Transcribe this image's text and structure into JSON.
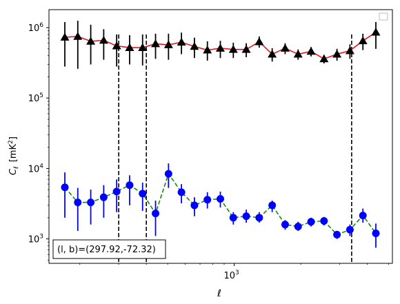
{
  "chart_data": {
    "type": "scatter",
    "xlabel": "ℓ",
    "ylabel": "C",
    "ylabel_sub": "ℓ",
    "ylabel_unit": "[mK",
    "ylabel_unit_sup": "2",
    "ylabel_unit_close": "]",
    "xscale": "log",
    "yscale": "log",
    "xlim": [
      145,
      5200
    ],
    "ylim": [
      450,
      1800000
    ],
    "x_major_ticks": [
      {
        "value": 1000,
        "base": "10",
        "exp": "3"
      }
    ],
    "y_major_ticks": [
      {
        "value": 1000,
        "base": "10",
        "exp": "3"
      },
      {
        "value": 10000,
        "base": "10",
        "exp": "4"
      },
      {
        "value": 100000,
        "base": "10",
        "exp": "5"
      },
      {
        "value": 1000000,
        "base": "10",
        "exp": "6"
      }
    ],
    "legend": "top-right, empty",
    "annotation": "(l, b)=(297.92,-72.32)",
    "vlines": [
      300,
      400,
      3400
    ],
    "vline_style": "dashed black",
    "series": [
      {
        "marker": "triangle",
        "marker_color": "#000000",
        "line_color": "#e8141b",
        "line_style": "solid",
        "error_color": "#000000",
        "points": [
          {
            "x": 160,
            "y": 730000,
            "lo": 280000,
            "hi": 1200000
          },
          {
            "x": 180,
            "y": 750000,
            "lo": 260000,
            "hi": 1250000
          },
          {
            "x": 200,
            "y": 640000,
            "lo": 300000,
            "hi": 1100000
          },
          {
            "x": 225,
            "y": 660000,
            "lo": 350000,
            "hi": 950000
          },
          {
            "x": 255,
            "y": 550000,
            "lo": 280000,
            "hi": 800000
          },
          {
            "x": 300,
            "y": 520000,
            "lo": 300000,
            "hi": 780000
          },
          {
            "x": 340,
            "y": 520000,
            "lo": 290000,
            "hi": 800000
          },
          {
            "x": 395,
            "y": 590000,
            "lo": 360000,
            "hi": 820000
          },
          {
            "x": 445,
            "y": 570000,
            "lo": 350000,
            "hi": 820000
          },
          {
            "x": 500,
            "y": 620000,
            "lo": 420000,
            "hi": 850000
          },
          {
            "x": 565,
            "y": 540000,
            "lo": 370000,
            "hi": 720000
          },
          {
            "x": 640,
            "y": 480000,
            "lo": 340000,
            "hi": 640000
          },
          {
            "x": 720,
            "y": 510000,
            "lo": 370000,
            "hi": 650000
          },
          {
            "x": 810,
            "y": 490000,
            "lo": 370000,
            "hi": 610000
          },
          {
            "x": 910,
            "y": 490000,
            "lo": 380000,
            "hi": 600000
          },
          {
            "x": 1030,
            "y": 630000,
            "lo": 520000,
            "hi": 750000
          },
          {
            "x": 1160,
            "y": 420000,
            "lo": 330000,
            "hi": 510000
          },
          {
            "x": 1300,
            "y": 510000,
            "lo": 420000,
            "hi": 600000
          },
          {
            "x": 1470,
            "y": 420000,
            "lo": 350000,
            "hi": 490000
          },
          {
            "x": 1650,
            "y": 460000,
            "lo": 390000,
            "hi": 530000
          },
          {
            "x": 1860,
            "y": 360000,
            "lo": 310000,
            "hi": 410000
          },
          {
            "x": 2100,
            "y": 420000,
            "lo": 340000,
            "hi": 500000
          },
          {
            "x": 2360,
            "y": 470000,
            "lo": 360000,
            "hi": 580000
          },
          {
            "x": 2660,
            "y": 650000,
            "lo": 480000,
            "hi": 820000
          },
          {
            "x": 3000,
            "y": 860000,
            "lo": 500000,
            "hi": 1200000
          }
        ]
      },
      {
        "marker": "circle",
        "marker_color": "#0000ff",
        "line_color": "#118811",
        "line_style": "dashed",
        "error_color": "#0000ff",
        "points": [
          {
            "x": 160,
            "y": 5400,
            "lo": 2000,
            "hi": 8800
          },
          {
            "x": 180,
            "y": 3300,
            "lo": 1300,
            "hi": 5300
          },
          {
            "x": 200,
            "y": 3300,
            "lo": 1600,
            "hi": 5000
          },
          {
            "x": 225,
            "y": 3900,
            "lo": 2000,
            "hi": 5800
          },
          {
            "x": 255,
            "y": 4700,
            "lo": 2400,
            "hi": 7000
          },
          {
            "x": 300,
            "y": 5800,
            "lo": 3000,
            "hi": 8000
          },
          {
            "x": 340,
            "y": 4400,
            "lo": 2500,
            "hi": 6300
          },
          {
            "x": 395,
            "y": 2300,
            "lo": 1100,
            "hi": 3500
          },
          {
            "x": 445,
            "y": 8400,
            "lo": 5300,
            "hi": 11800
          },
          {
            "x": 500,
            "y": 4600,
            "lo": 3200,
            "hi": 6000
          },
          {
            "x": 565,
            "y": 3000,
            "lo": 2100,
            "hi": 3900
          },
          {
            "x": 640,
            "y": 3600,
            "lo": 2700,
            "hi": 4600
          },
          {
            "x": 720,
            "y": 3700,
            "lo": 2800,
            "hi": 4700
          },
          {
            "x": 810,
            "y": 2000,
            "lo": 1600,
            "hi": 2400
          },
          {
            "x": 910,
            "y": 2100,
            "lo": 1700,
            "hi": 2600
          },
          {
            "x": 1030,
            "y": 2000,
            "lo": 1700,
            "hi": 2400
          },
          {
            "x": 1160,
            "y": 3000,
            "lo": 2400,
            "hi": 3500
          },
          {
            "x": 1300,
            "y": 1600,
            "lo": 1350,
            "hi": 1850
          },
          {
            "x": 1470,
            "y": 1500,
            "lo": 1300,
            "hi": 1750
          },
          {
            "x": 1650,
            "y": 1750,
            "lo": 1500,
            "hi": 2000
          },
          {
            "x": 1860,
            "y": 1800,
            "lo": 1550,
            "hi": 2050
          },
          {
            "x": 2100,
            "y": 1150,
            "lo": 1000,
            "hi": 1300
          },
          {
            "x": 2360,
            "y": 1350,
            "lo": 1100,
            "hi": 1600
          },
          {
            "x": 2660,
            "y": 2150,
            "lo": 1700,
            "hi": 2700
          },
          {
            "x": 3000,
            "y": 1200,
            "lo": 750,
            "hi": 1650
          }
        ]
      }
    ]
  }
}
